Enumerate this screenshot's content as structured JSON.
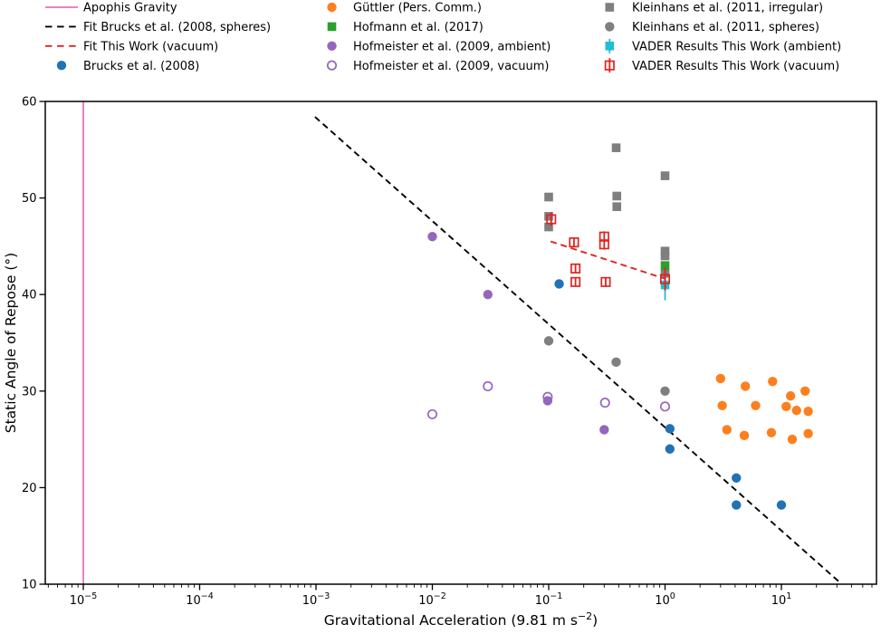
{
  "chart_data": {
    "type": "scatter",
    "x_scale": "log",
    "xlabel": {
      "pre": "Gravitational Acceleration (9.81 m s",
      "sup": "−2",
      "post": ")"
    },
    "ylabel": "Static Angle of Repose (°)",
    "xlim": [
      4.7e-06,
      65.6
    ],
    "ylim": [
      10,
      60
    ],
    "x_major_tick_exponents": [
      -5,
      -4,
      -3,
      -2,
      -1,
      0,
      1
    ],
    "y_ticks": [
      10,
      20,
      30,
      40,
      50,
      60
    ],
    "grid": false,
    "vline": {
      "name": "Apophis Gravity",
      "x": 1e-05,
      "color": "#e571c2"
    },
    "fit_lines": [
      {
        "name": "Fit Brucks et al. (2008, spheres)",
        "color": "#000000",
        "x1": 0.00098,
        "y1": 58.4,
        "x2": 31.0,
        "y2": 10.3
      },
      {
        "name": "Fit This Work (vacuum)",
        "color": "#e02420",
        "x1": 0.104,
        "y1": 45.5,
        "x2": 1.02,
        "y2": 41.6
      }
    ],
    "series": [
      {
        "name": "Kleinhans et al. (2011, irregular)",
        "marker": "square",
        "color": "#7f7f7f",
        "points": [
          [
            0.1,
            50.1
          ],
          [
            0.1,
            48.1
          ],
          [
            0.1,
            47.0
          ],
          [
            0.38,
            55.2
          ],
          [
            0.385,
            50.2
          ],
          [
            0.385,
            49.1
          ],
          [
            1,
            52.3
          ],
          [
            1,
            44.5
          ],
          [
            1,
            44.0
          ],
          [
            1,
            42.2
          ]
        ]
      },
      {
        "name": "Kleinhans et al. (2011, spheres)",
        "marker": "circle",
        "color": "#7f7f7f",
        "points": [
          [
            0.1,
            35.2
          ],
          [
            0.38,
            33
          ],
          [
            1,
            30
          ]
        ]
      },
      {
        "name": "Brucks et al. (2008)",
        "marker": "circle",
        "color": "#2272b4",
        "points": [
          [
            0.123,
            41.1
          ],
          [
            1.1,
            26.1
          ],
          [
            1.1,
            24
          ],
          [
            4.1,
            21
          ],
          [
            4.1,
            18.2
          ],
          [
            10,
            18.2
          ]
        ]
      },
      {
        "name": "Güttler (Pers. Comm.)",
        "marker": "circle",
        "color": "#fd7f1e",
        "points": [
          [
            3,
            31.3
          ],
          [
            4.9,
            30.5
          ],
          [
            8.4,
            31
          ],
          [
            12,
            29.5
          ],
          [
            16,
            30
          ],
          [
            3.1,
            28.5
          ],
          [
            6,
            28.5
          ],
          [
            11,
            28.4
          ],
          [
            13.5,
            28
          ],
          [
            17,
            27.9
          ],
          [
            3.4,
            26
          ],
          [
            4.8,
            25.4
          ],
          [
            8.2,
            25.7
          ],
          [
            12.4,
            25
          ],
          [
            17,
            25.6
          ]
        ]
      },
      {
        "name": "Hofmann et al. (2017)",
        "marker": "square",
        "color": "#2ca02c",
        "points": [
          [
            1,
            43
          ]
        ]
      },
      {
        "name": "Hofmeister et al. (2009, ambient)",
        "marker": "circle",
        "color": "#9467bd",
        "points": [
          [
            0.01,
            46
          ],
          [
            0.03,
            40
          ],
          [
            0.098,
            29
          ],
          [
            0.3,
            26
          ]
        ]
      },
      {
        "name": "Hofmeister et al. (2009, vacuum)",
        "marker": "open-circle",
        "color": "#9467bd",
        "points": [
          [
            0.01,
            27.6
          ],
          [
            0.03,
            30.5
          ],
          [
            0.098,
            29.4
          ],
          [
            0.305,
            28.8
          ],
          [
            1,
            28.4
          ]
        ]
      },
      {
        "name": "VADER Results This Work (ambient)",
        "marker": "square-err",
        "color": "#1fbed2",
        "points": [
          [
            1,
            41,
            1.6
          ]
        ]
      },
      {
        "name": "VADER Results This Work (vacuum)",
        "marker": "open-square-err",
        "color": "#e02420",
        "points": [
          [
            0.105,
            47.8,
            0.7
          ],
          [
            0.165,
            45.4,
            0.45
          ],
          [
            0.3,
            46.0,
            0.55
          ],
          [
            0.3,
            45.2,
            0.55
          ],
          [
            0.17,
            42.7,
            0.42
          ],
          [
            0.17,
            41.3,
            0.42
          ],
          [
            0.309,
            41.3,
            0.42
          ],
          [
            1,
            41.6,
            1.2
          ]
        ]
      }
    ],
    "legend": {
      "columns": [
        [
          {
            "label": "Apophis Gravity",
            "glyph": "line",
            "color": "#e571c2"
          },
          {
            "label": "Fit Brucks et al. (2008, spheres)",
            "glyph": "dashed-line",
            "color": "#000000"
          },
          {
            "label": "Fit This Work (vacuum)",
            "glyph": "dashed-line",
            "color": "#e02420"
          },
          {
            "label": "Brucks et al. (2008)",
            "glyph": "circle",
            "color": "#2272b4"
          }
        ],
        [
          {
            "label": "Güttler (Pers. Comm.)",
            "glyph": "circle",
            "color": "#fd7f1e"
          },
          {
            "label": "Hofmann et al. (2017)",
            "glyph": "square",
            "color": "#2ca02c"
          },
          {
            "label": "Hofmeister et al. (2009, ambient)",
            "glyph": "circle",
            "color": "#9467bd"
          },
          {
            "label": "Hofmeister et al. (2009, vacuum)",
            "glyph": "open-circle",
            "color": "#9467bd"
          }
        ],
        [
          {
            "label": "Kleinhans et al. (2011, irregular)",
            "glyph": "square",
            "color": "#7f7f7f"
          },
          {
            "label": "Kleinhans et al. (2011, spheres)",
            "glyph": "circle",
            "color": "#7f7f7f"
          },
          {
            "label": "VADER Results This Work (ambient)",
            "glyph": "square-err",
            "color": "#1fbed2"
          },
          {
            "label": "VADER Results This Work (vacuum)",
            "glyph": "open-square-err",
            "color": "#e02420"
          }
        ]
      ]
    }
  }
}
